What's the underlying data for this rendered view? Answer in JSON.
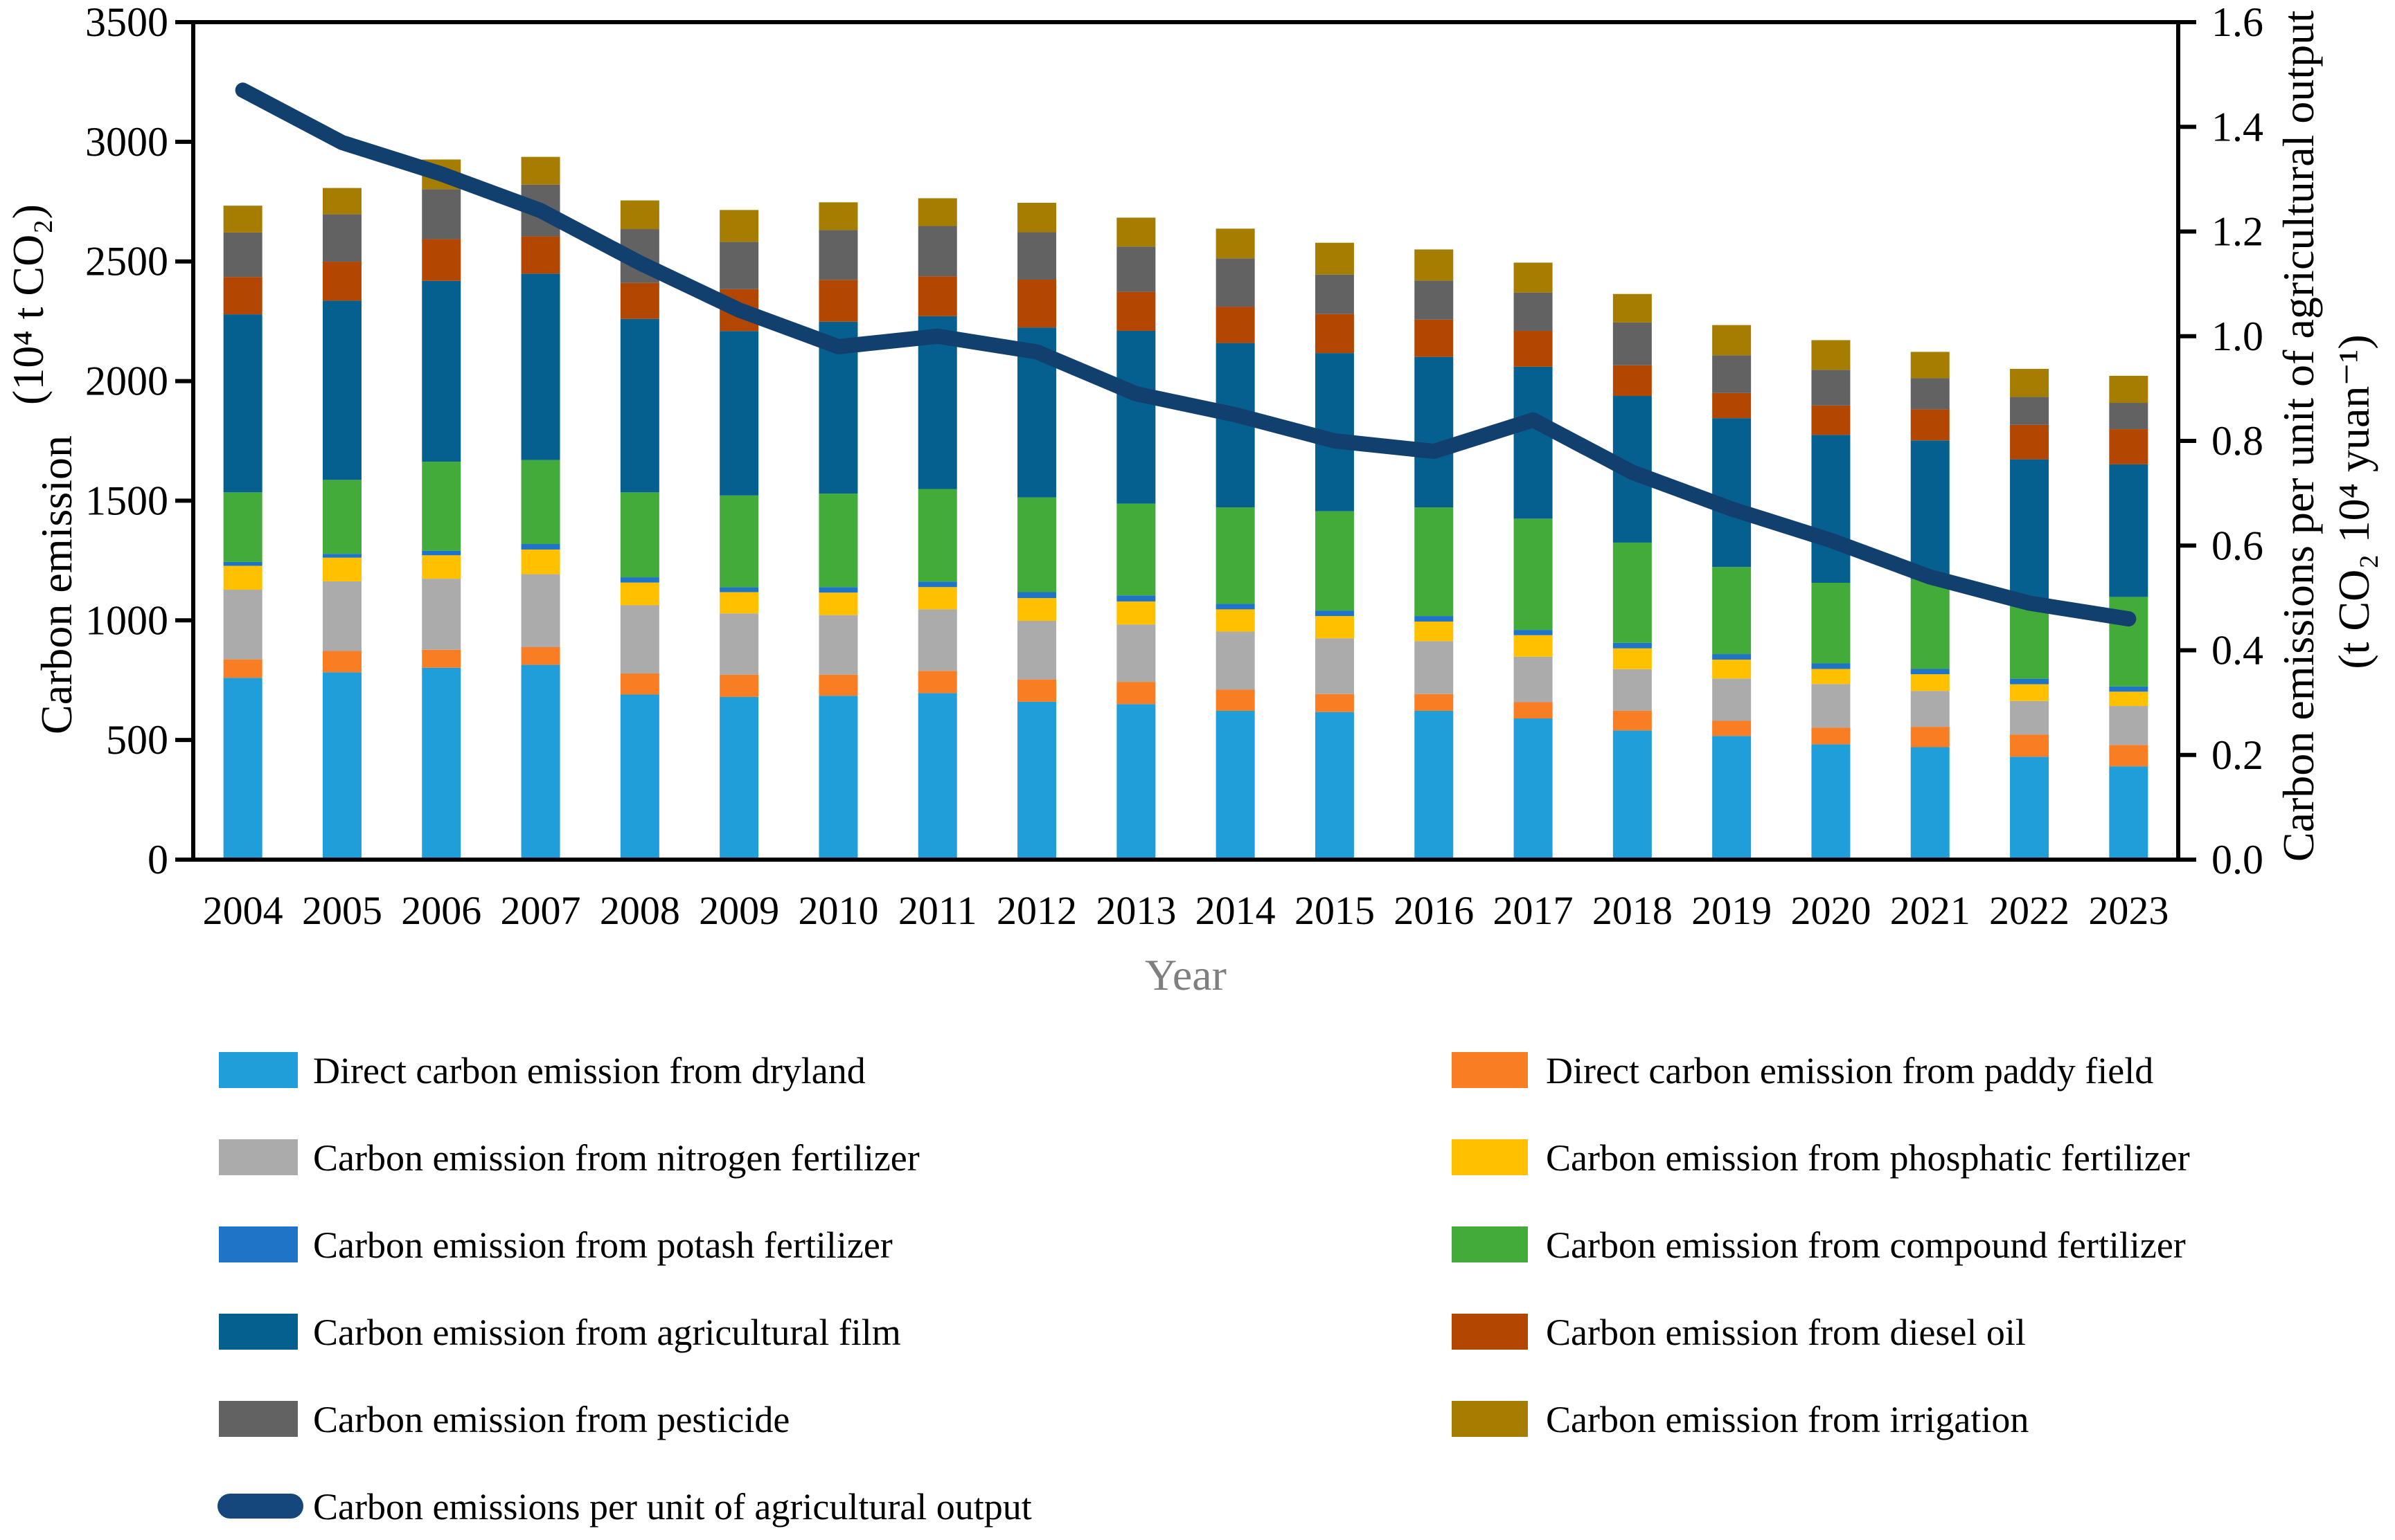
{
  "chart_data": {
    "type": "stacked-bar-line-combo",
    "title": "",
    "xlabel": "Year",
    "ylabel_left_line1": "Carbon emission",
    "ylabel_left_line2": "(10⁴ t CO₂)",
    "ylabel_right_line1": "Carbon emissions per unit of agricultural output",
    "ylabel_right_line2": "(t CO₂ 10⁴ yuan⁻¹)",
    "categories": [
      "2004",
      "2005",
      "2006",
      "2007",
      "2008",
      "2009",
      "2010",
      "2011",
      "2012",
      "2013",
      "2014",
      "2015",
      "2016",
      "2017",
      "2018",
      "2019",
      "2020",
      "2021",
      "2022",
      "2023"
    ],
    "ylim_left": [
      0,
      3500
    ],
    "ytick_labels_left": [
      "0",
      "500",
      "1000",
      "1500",
      "2000",
      "2500",
      "3000",
      "3500"
    ],
    "ylim_right": [
      0,
      1.6
    ],
    "ytick_labels_right": [
      "0.0",
      "0.2",
      "0.4",
      "0.6",
      "0.8",
      "1.0",
      "1.2",
      "1.4",
      "1.6"
    ],
    "grid": false,
    "legend_position": "bottom-two-columns",
    "series": [
      {
        "name": "Direct carbon emission from dryland",
        "color": "#1F9ED9",
        "values": [
          760,
          783,
          802,
          814,
          690,
          680,
          685,
          696,
          660,
          650,
          622,
          617,
          622,
          590,
          540,
          517,
          482,
          470,
          430,
          390
        ]
      },
      {
        "name": "Direct carbon emission from paddy field",
        "color": "#F87D23",
        "values": [
          77,
          89,
          75,
          74,
          88,
          93,
          88,
          93,
          93,
          93,
          88,
          75,
          70,
          68,
          82,
          63,
          70,
          85,
          93,
          89
        ]
      },
      {
        "name": "Carbon emission from nitrogen fertilizer",
        "color": "#ABABAB",
        "values": [
          291,
          291,
          297,
          305,
          285,
          256,
          249,
          257,
          245,
          240,
          243,
          233,
          221,
          190,
          174,
          177,
          182,
          150,
          140,
          163
        ]
      },
      {
        "name": "Carbon emission from phosphatic fertilizer",
        "color": "#FFC000",
        "values": [
          100,
          99,
          98,
          103,
          95,
          89,
          94,
          93,
          95,
          96,
          93,
          93,
          82,
          90,
          87,
          79,
          63,
          70,
          70,
          60
        ]
      },
      {
        "name": "Carbon emission from potash fertilizer",
        "color": "#1F74C8",
        "values": [
          16,
          16,
          19,
          23,
          22,
          20,
          23,
          23,
          25,
          25,
          23,
          23,
          23,
          22,
          23,
          23,
          23,
          22,
          23,
          22
        ]
      },
      {
        "name": "Carbon emission from compound fertilizer",
        "color": "#43AB3A",
        "values": [
          291,
          309,
          372,
          351,
          355,
          384,
          391,
          387,
          396,
          384,
          403,
          415,
          454,
          465,
          419,
          364,
          337,
          375,
          310,
          374
        ]
      },
      {
        "name": "Carbon emission from agricultural film",
        "color": "#06608F",
        "values": [
          744,
          749,
          756,
          779,
          725,
          687,
          718,
          722,
          710,
          722,
          687,
          661,
          629,
          635,
          613,
          622,
          618,
          580,
          607,
          554
        ]
      },
      {
        "name": "Carbon emission from diesel oil",
        "color": "#B34702",
        "values": [
          156,
          163,
          174,
          156,
          150,
          175,
          175,
          167,
          200,
          163,
          152,
          163,
          156,
          150,
          128,
          105,
          123,
          130,
          144,
          147
        ]
      },
      {
        "name": "Carbon emission from pesticide",
        "color": "#626262",
        "values": [
          186,
          198,
          209,
          216,
          225,
          198,
          208,
          210,
          198,
          189,
          202,
          165,
          163,
          160,
          179,
          158,
          149,
          130,
          117,
          110
        ]
      },
      {
        "name": "Carbon emission from irrigation",
        "color": "#A67D01",
        "values": [
          112,
          110,
          124,
          116,
          120,
          133,
          116,
          116,
          123,
          121,
          124,
          133,
          130,
          125,
          119,
          126,
          124,
          110,
          117,
          113
        ]
      }
    ],
    "line_series": {
      "name": "Carbon emissions per unit of  agricultural output",
      "axis": "right",
      "color": "#11406F",
      "values": [
        1.47,
        1.37,
        1.31,
        1.24,
        1.14,
        1.05,
        0.98,
        1.0,
        0.97,
        0.89,
        0.85,
        0.8,
        0.78,
        0.84,
        0.74,
        0.67,
        0.61,
        0.54,
        0.49,
        0.46
      ]
    }
  },
  "legend": {
    "left_column": [
      {
        "label": "Direct carbon emission from dryland",
        "color": "#1F9ED9",
        "type": "box"
      },
      {
        "label": "Carbon emission from nitrogen fertilizer",
        "color": "#ABABAB",
        "type": "box"
      },
      {
        "label": "Carbon emission from potash fertilizer",
        "color": "#1F74C8",
        "type": "box"
      },
      {
        "label": "Carbon emission from agricultural film",
        "color": "#06608F",
        "type": "box"
      },
      {
        "label": "Carbon emission from pesticide",
        "color": "#626262",
        "type": "box"
      },
      {
        "label": "Carbon emissions per unit of  agricultural output",
        "color": "#15477C",
        "type": "line"
      }
    ],
    "right_column": [
      {
        "label": "Direct carbon emission from paddy field",
        "color": "#F87D23",
        "type": "box"
      },
      {
        "label": "Carbon emission from phosphatic fertilizer",
        "color": "#FFC000",
        "type": "box"
      },
      {
        "label": "Carbon emission from compound fertilizer",
        "color": "#43AB3A",
        "type": "box"
      },
      {
        "label": "Carbon emission from diesel oil",
        "color": "#B34702",
        "type": "box"
      },
      {
        "label": "Carbon emission from irrigation",
        "color": "#A67D01",
        "type": "box"
      }
    ]
  }
}
